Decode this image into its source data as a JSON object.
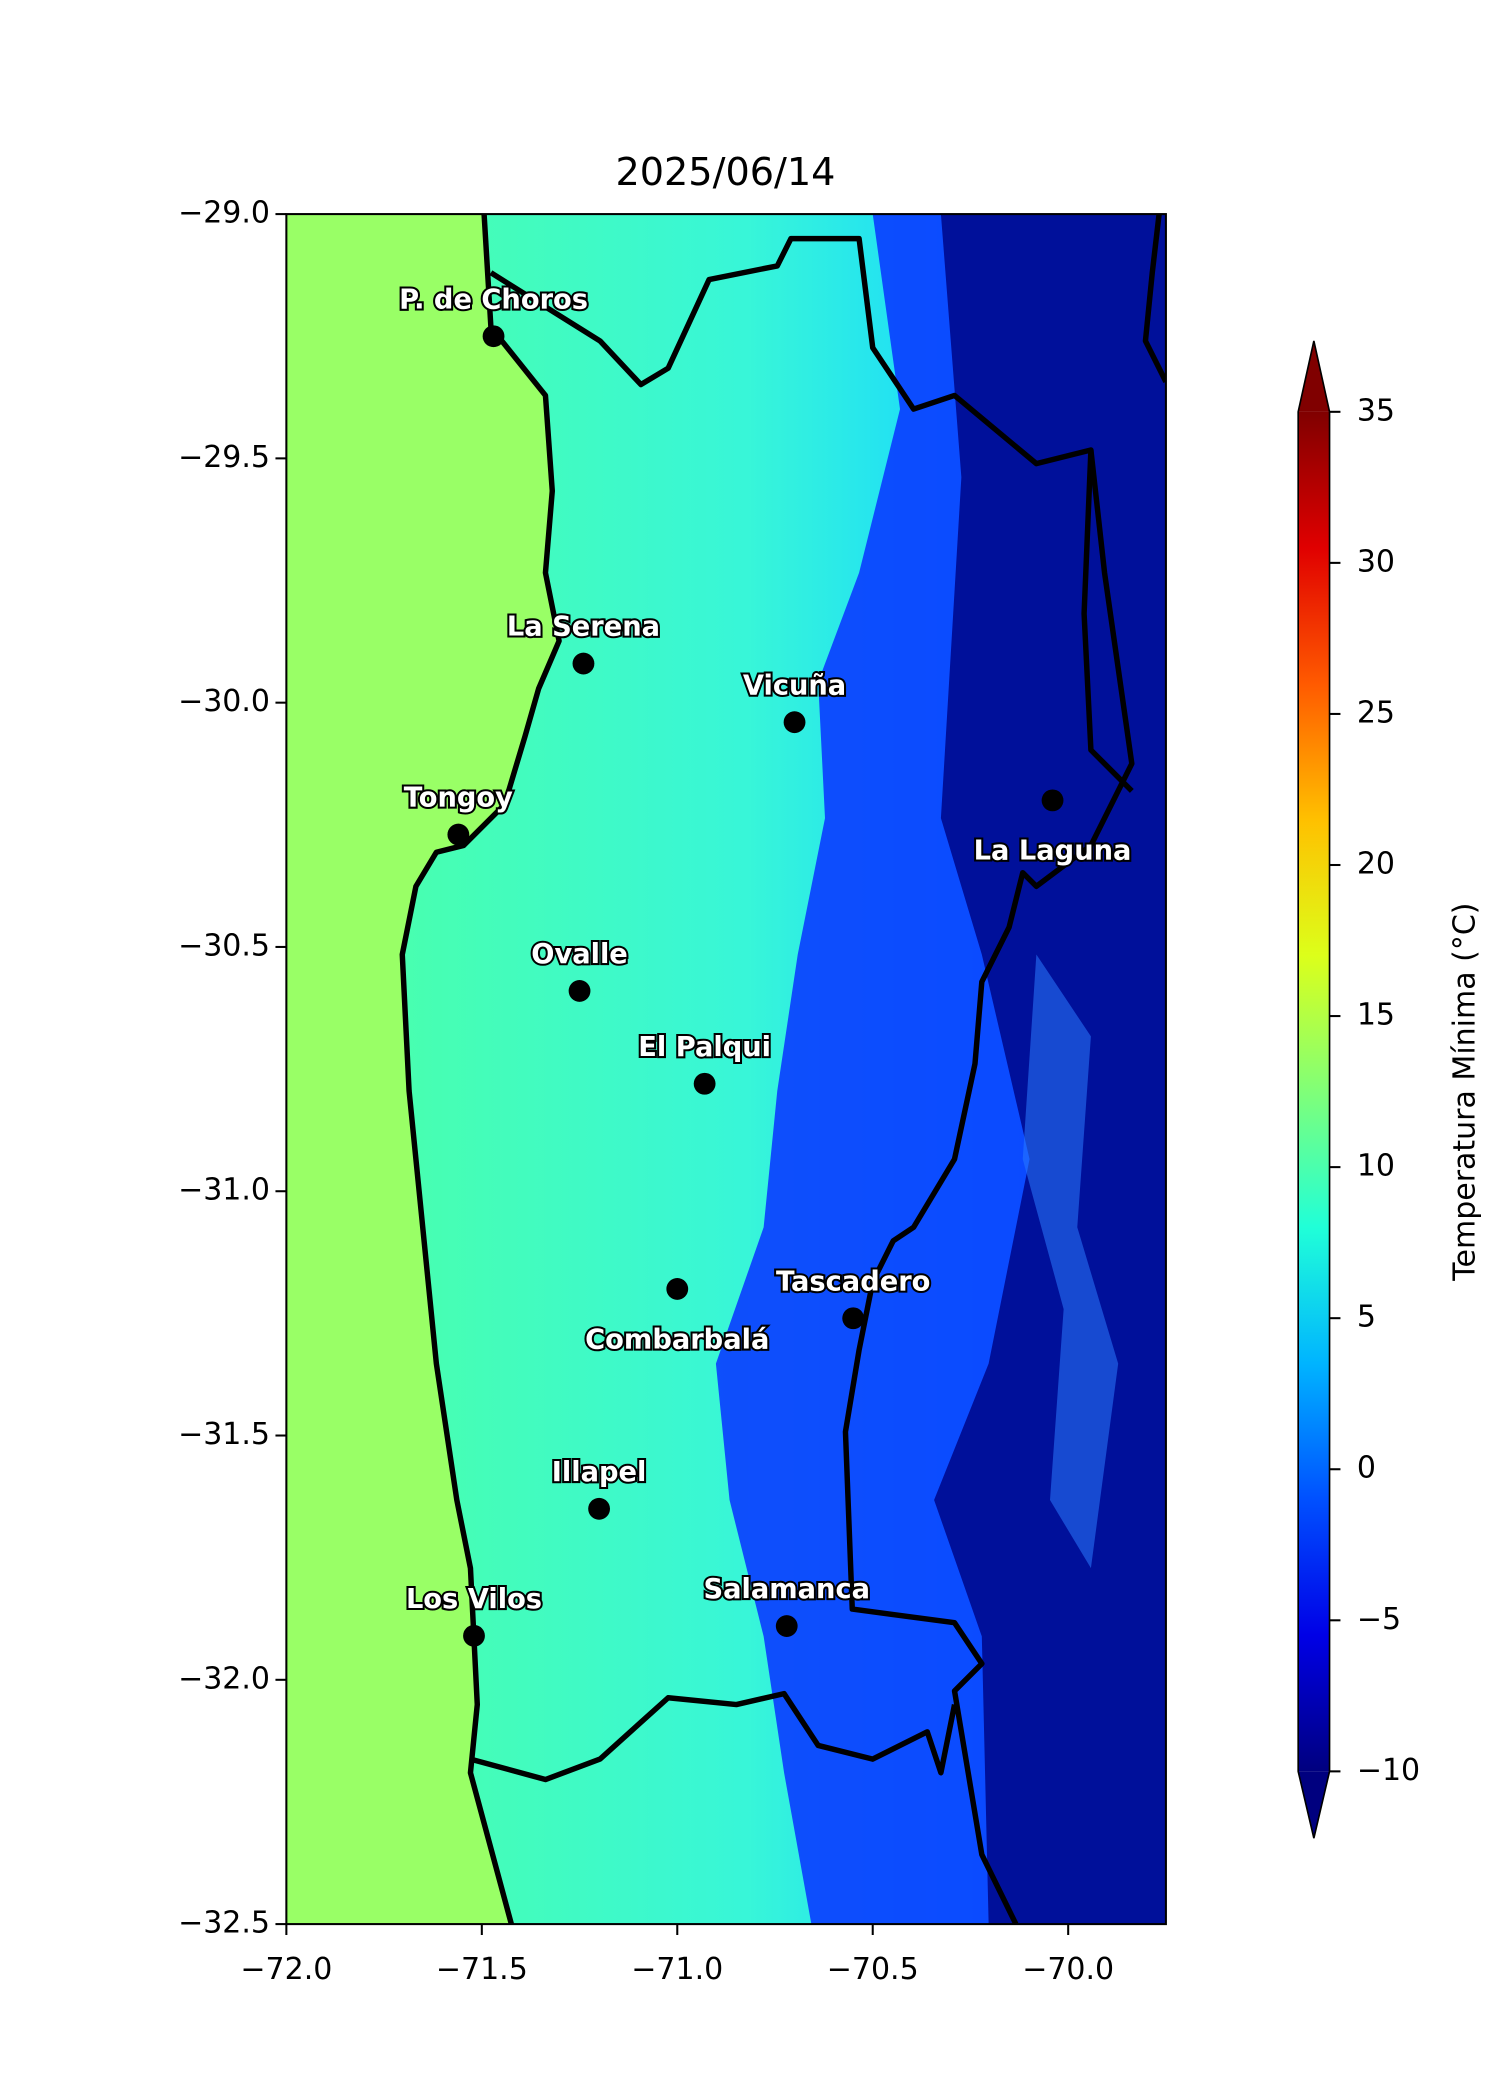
{
  "chart_data": {
    "type": "map",
    "title": "2025/06/14",
    "xlim": [
      -72.0,
      -69.75
    ],
    "ylim": [
      -32.5,
      -29.0
    ],
    "xticks": [
      {
        "value": -72.0,
        "label": "−72.0"
      },
      {
        "value": -71.5,
        "label": "−71.5"
      },
      {
        "value": -71.0,
        "label": "−71.0"
      },
      {
        "value": -70.5,
        "label": "−70.5"
      },
      {
        "value": -70.0,
        "label": "−70.0"
      }
    ],
    "yticks": [
      {
        "value": -29.0,
        "label": "−29.0"
      },
      {
        "value": -29.5,
        "label": "−29.5"
      },
      {
        "value": -30.0,
        "label": "−30.0"
      },
      {
        "value": -30.5,
        "label": "−30.5"
      },
      {
        "value": -31.0,
        "label": "−31.0"
      },
      {
        "value": -31.5,
        "label": "−31.5"
      },
      {
        "value": -32.0,
        "label": "−32.0"
      },
      {
        "value": -32.5,
        "label": "−32.5"
      }
    ],
    "cities": [
      {
        "name": "P. de Choros",
        "lon": -71.47,
        "lat": -29.25
      },
      {
        "name": "La Serena",
        "lon": -71.24,
        "lat": -29.92
      },
      {
        "name": "Vicuña",
        "lon": -70.7,
        "lat": -30.04
      },
      {
        "name": "La Laguna",
        "lon": -70.04,
        "lat": -30.2
      },
      {
        "name": "Tongoy",
        "lon": -71.56,
        "lat": -30.27
      },
      {
        "name": "Ovalle",
        "lon": -71.25,
        "lat": -30.59
      },
      {
        "name": "El Palqui",
        "lon": -70.93,
        "lat": -30.78
      },
      {
        "name": "Combarbalá",
        "lon": -71.0,
        "lat": -31.2
      },
      {
        "name": "Tascadero",
        "lon": -70.55,
        "lat": -31.26
      },
      {
        "name": "Illapel",
        "lon": -71.2,
        "lat": -31.65
      },
      {
        "name": "Salamanca",
        "lon": -70.72,
        "lat": -31.89
      },
      {
        "name": "Los Vilos",
        "lon": -71.52,
        "lat": -31.91
      }
    ],
    "colorbar": {
      "label": "Temperatura Mínima (°C)",
      "lim": [
        -10,
        35
      ],
      "ticks": [
        {
          "value": -10,
          "label": "−10"
        },
        {
          "value": -5,
          "label": "−5"
        },
        0,
        5,
        10,
        15,
        20,
        25,
        30,
        35
      ],
      "colors": [
        "#00007f",
        "#0000e6",
        "#0050ff",
        "#00b4ff",
        "#20ffd8",
        "#80ff78",
        "#dcff1a",
        "#ffc000",
        "#ff5a00",
        "#e00000",
        "#800000"
      ]
    }
  }
}
